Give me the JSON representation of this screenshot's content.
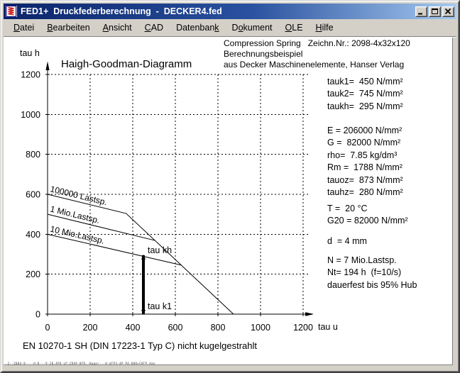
{
  "window": {
    "title": "FED1+  Druckfederberechnung  -  DECKER4.fed",
    "app_icon": "spring-coil",
    "controls": [
      "minimize",
      "maximize",
      "close"
    ]
  },
  "menu": {
    "items": [
      {
        "label": "Datei",
        "underline": 0
      },
      {
        "label": "Bearbeiten",
        "underline": 0
      },
      {
        "label": "Ansicht",
        "underline": 0
      },
      {
        "label": "CAD",
        "underline": 0
      },
      {
        "label": "Datenbank",
        "underline": 8
      },
      {
        "label": "Dokument",
        "underline": 1
      },
      {
        "label": "OLE",
        "underline": 0
      },
      {
        "label": "Hilfe",
        "underline": 0
      }
    ]
  },
  "header_note": {
    "lines": [
      "Compression Spring   Zeichn.Nr.: 2098-4x32x120",
      "Berechnungsbeispiel",
      "aus Decker Maschinenelemente, Hanser Verlag"
    ]
  },
  "parameters": {
    "group1": [
      "tauk1=  450 N/mm²",
      "tauk2=  745 N/mm²",
      "taukh=  295 N/mm²"
    ],
    "group2": [
      "E = 206000 N/mm²",
      "G =  82000 N/mm²",
      "rho=  7.85 kg/dm³",
      "Rm =  1788 N/mm²",
      "tauoz=  873 N/mm²",
      "tauhz=  280 N/mm²"
    ],
    "group3": [
      "T =  20 °C",
      "G20 = 82000 N/mm²"
    ],
    "group4": [
      "d  = 4 mm"
    ],
    "group5": [
      "N = 7 Mio.Lastsp.",
      "Nt= 194 h  (f=10/s)",
      "dauerfest bis 95% Hub"
    ]
  },
  "chart_data": {
    "type": "line",
    "title": "Haigh-Goodman-Diagramm",
    "xlabel": "tau u",
    "ylabel": "tau h",
    "xlim": [
      0,
      1200
    ],
    "ylim": [
      0,
      1200
    ],
    "x_ticks": [
      0,
      200,
      400,
      600,
      800,
      1000,
      1200
    ],
    "y_ticks": [
      0,
      200,
      400,
      600,
      800,
      1000,
      1200
    ],
    "grid": "dashed",
    "series": [
      {
        "name": "100000 Lastsp.",
        "points": [
          [
            0,
            600
          ],
          [
            369,
            504
          ],
          [
            873,
            0
          ]
        ]
      },
      {
        "name": "1 Mio.Lastsp.",
        "points": [
          [
            0,
            500
          ],
          [
            504,
            369
          ]
        ]
      },
      {
        "name": "10 Mio.Lastsp.",
        "points": [
          [
            0,
            400
          ],
          [
            626,
            246
          ]
        ]
      }
    ],
    "operating_bar": {
      "x": 450,
      "y_bottom": 0,
      "y_top": 295,
      "top_label": "tau kh",
      "bottom_label": "tau k1"
    }
  },
  "material_note": "EN 10270-1 SH (DIN 17223-1 Typ C) nicht kugelgestrahlt",
  "footer_microtext": "·2··2004·8····H·D···9·28.4PO·LP.CRA9·8FR.·Hager···H·dFP3·4P·Pd·8HO+C8FP.4ae",
  "colors": {
    "titlebar_left": "#0a246a",
    "titlebar_right": "#a6caf0",
    "chrome": "#d4d0c8",
    "client_bg": "#ffffff",
    "ink": "#000000",
    "icon_red": "#cc2222"
  }
}
